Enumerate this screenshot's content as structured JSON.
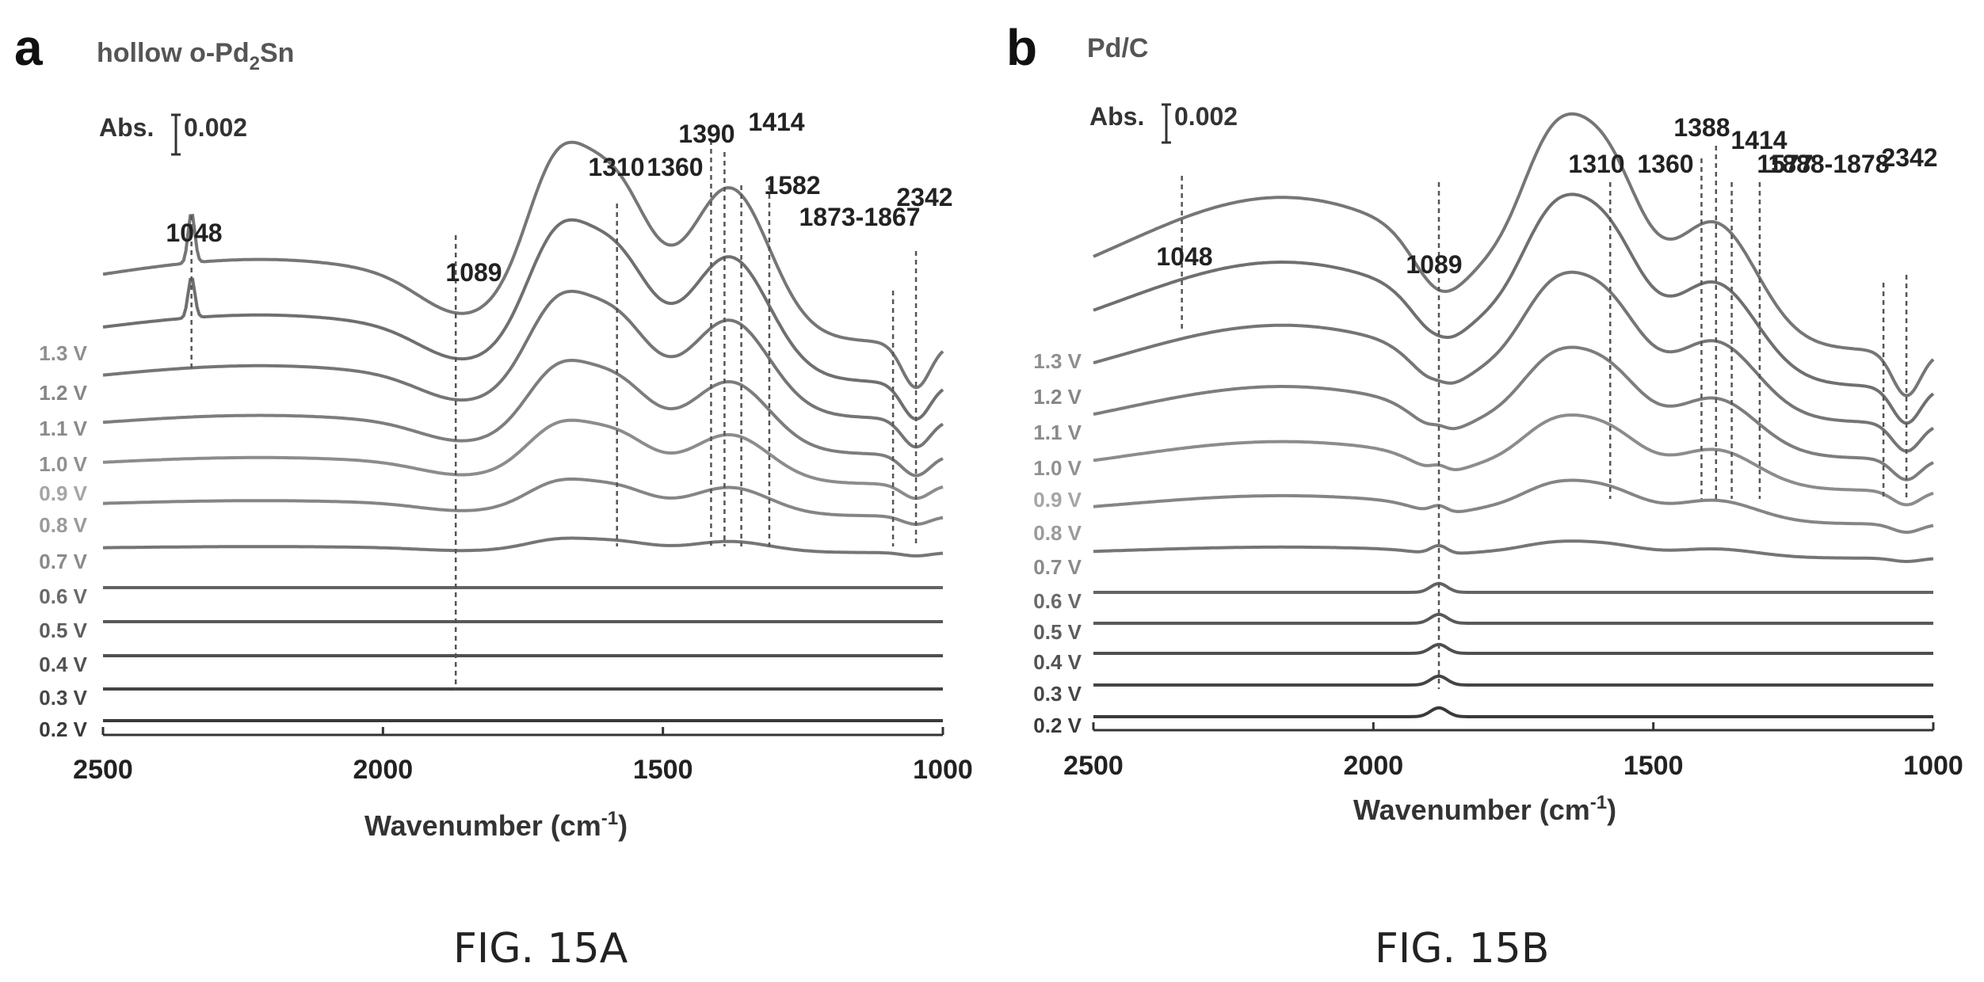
{
  "figure": {
    "captions": [
      "FIG. 15A",
      "FIG. 15B"
    ]
  },
  "chart_data": [
    {
      "type": "line",
      "panel": "a",
      "title": "hollow o-Pd",
      "title_sub": "2",
      "title_end": "Sn",
      "scale_label": "Abs.",
      "scale_value": "0.002",
      "xlabel": "Wavenumber (cm",
      "xlabel_sup": "-1",
      "xlabel_end": ")",
      "xlim": [
        2500,
        1000
      ],
      "xticks": [
        2500,
        2000,
        1500,
        1000
      ],
      "peak_labels": [
        "2342",
        "1873-1867",
        "1582",
        "1414",
        "1390",
        "1360",
        "1310",
        "1089",
        "1048"
      ],
      "peak_positions": [
        2342,
        1870,
        1582,
        1414,
        1390,
        1360,
        1310,
        1089,
        1048
      ],
      "series": [
        {
          "name": "0.2 V",
          "values": [
            0,
            0,
            0,
            0,
            0,
            0,
            0,
            0,
            0
          ]
        },
        {
          "name": "0.3 V",
          "values": [
            0,
            0,
            0,
            0,
            0,
            0,
            0,
            0,
            0
          ]
        },
        {
          "name": "0.4 V",
          "values": [
            0,
            0,
            0,
            0,
            0,
            0,
            0,
            0,
            0
          ]
        },
        {
          "name": "0.5 V",
          "values": [
            0,
            0,
            0,
            0,
            0,
            0,
            0,
            0,
            0
          ]
        },
        {
          "name": "0.6 V",
          "values": [
            0,
            0,
            0,
            0,
            0,
            0,
            0,
            0,
            0
          ]
        },
        {
          "name": "0.7 V",
          "values": [
            0,
            0,
            0,
            0,
            0,
            0,
            0,
            0,
            0
          ]
        },
        {
          "name": "0.8 V",
          "values": [
            0,
            0,
            0,
            0,
            0,
            0,
            0,
            0,
            0
          ]
        },
        {
          "name": "0.9 V",
          "values": [
            0,
            0,
            0,
            0,
            0,
            0,
            0,
            0,
            0
          ]
        },
        {
          "name": "1.0 V",
          "values": [
            0,
            0,
            0,
            0,
            0,
            0,
            0,
            0,
            0
          ]
        },
        {
          "name": "1.1 V",
          "values": [
            0,
            0,
            0,
            0,
            0,
            0,
            0,
            0,
            0
          ]
        },
        {
          "name": "1.2 V",
          "values": [
            0,
            0,
            0,
            0,
            0,
            0,
            0,
            0,
            0
          ]
        },
        {
          "name": "1.3 V",
          "values": [
            0,
            0,
            0,
            0,
            0,
            0,
            0,
            0,
            0
          ]
        }
      ],
      "label_colors": [
        "#3a3a3a",
        "#474747",
        "#525252",
        "#5d5d5d",
        "#6a6a6a",
        "#8a8a8a",
        "#9a9a9a",
        "#a5a5a5",
        "#909090",
        "#8a8a8a",
        "#868686",
        "#8f8f8f"
      ],
      "line_colors": [
        "#3a3a3a",
        "#444444",
        "#4f4f4f",
        "#595959",
        "#636363",
        "#757575",
        "#858585",
        "#8c8c8c",
        "#7d7d7d",
        "#757575",
        "#6f6f6f",
        "#767676"
      ]
    },
    {
      "type": "line",
      "panel": "b",
      "title": "Pd/C",
      "scale_label": "Abs.",
      "scale_value": "0.002",
      "xlabel": "Wavenumber (cm",
      "xlabel_sup": "-1",
      "xlabel_end": ")",
      "xlim": [
        2500,
        1000
      ],
      "xticks": [
        2500,
        2000,
        1500,
        1000
      ],
      "peak_labels": [
        "2342",
        "1888-1878",
        "1577",
        "1414",
        "1388",
        "1360",
        "1310",
        "1089",
        "1048"
      ],
      "peak_positions": [
        2342,
        1883,
        1577,
        1414,
        1388,
        1360,
        1310,
        1089,
        1048
      ],
      "series": [
        {
          "name": "0.2 V"
        },
        {
          "name": "0.3 V"
        },
        {
          "name": "0.4 V"
        },
        {
          "name": "0.5 V"
        },
        {
          "name": "0.6 V"
        },
        {
          "name": "0.7 V"
        },
        {
          "name": "0.8 V"
        },
        {
          "name": "0.9 V"
        },
        {
          "name": "1.0 V"
        },
        {
          "name": "1.1 V"
        },
        {
          "name": "1.2 V"
        },
        {
          "name": "1.3 V"
        }
      ],
      "label_colors": [
        "#3a3a3a",
        "#474747",
        "#525252",
        "#5d5d5d",
        "#6a6a6a",
        "#8a8a8a",
        "#9a9a9a",
        "#a5a5a5",
        "#909090",
        "#8a8a8a",
        "#868686",
        "#8f8f8f"
      ],
      "line_colors": [
        "#3a3a3a",
        "#444444",
        "#4f4f4f",
        "#595959",
        "#636363",
        "#757575",
        "#858585",
        "#8c8c8c",
        "#7d7d7d",
        "#757575",
        "#6f6f6f",
        "#767676"
      ]
    }
  ]
}
